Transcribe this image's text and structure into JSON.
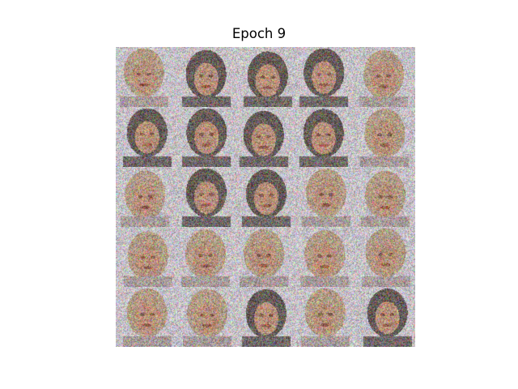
{
  "figure": {
    "title": "Epoch 9"
  },
  "grid": {
    "rows": 5,
    "columns": 5,
    "tiles": [
      {
        "row": 1,
        "col": 1,
        "hair": "light"
      },
      {
        "row": 1,
        "col": 2,
        "hair": "dark"
      },
      {
        "row": 1,
        "col": 3,
        "hair": "dark"
      },
      {
        "row": 1,
        "col": 4,
        "hair": "dark"
      },
      {
        "row": 1,
        "col": 5,
        "hair": "light"
      },
      {
        "row": 2,
        "col": 1,
        "hair": "dark"
      },
      {
        "row": 2,
        "col": 2,
        "hair": "dark"
      },
      {
        "row": 2,
        "col": 3,
        "hair": "dark"
      },
      {
        "row": 2,
        "col": 4,
        "hair": "dark"
      },
      {
        "row": 2,
        "col": 5,
        "hair": "light"
      },
      {
        "row": 3,
        "col": 1,
        "hair": "light"
      },
      {
        "row": 3,
        "col": 2,
        "hair": "dark"
      },
      {
        "row": 3,
        "col": 3,
        "hair": "dark"
      },
      {
        "row": 3,
        "col": 4,
        "hair": "light"
      },
      {
        "row": 3,
        "col": 5,
        "hair": "light"
      },
      {
        "row": 4,
        "col": 1,
        "hair": "light"
      },
      {
        "row": 4,
        "col": 2,
        "hair": "light"
      },
      {
        "row": 4,
        "col": 3,
        "hair": "light"
      },
      {
        "row": 4,
        "col": 4,
        "hair": "light"
      },
      {
        "row": 4,
        "col": 5,
        "hair": "light"
      },
      {
        "row": 5,
        "col": 1,
        "hair": "light"
      },
      {
        "row": 5,
        "col": 2,
        "hair": "light"
      },
      {
        "row": 5,
        "col": 3,
        "hair": "dark"
      },
      {
        "row": 5,
        "col": 4,
        "hair": "light"
      },
      {
        "row": 5,
        "col": 5,
        "hair": "dark"
      }
    ]
  }
}
